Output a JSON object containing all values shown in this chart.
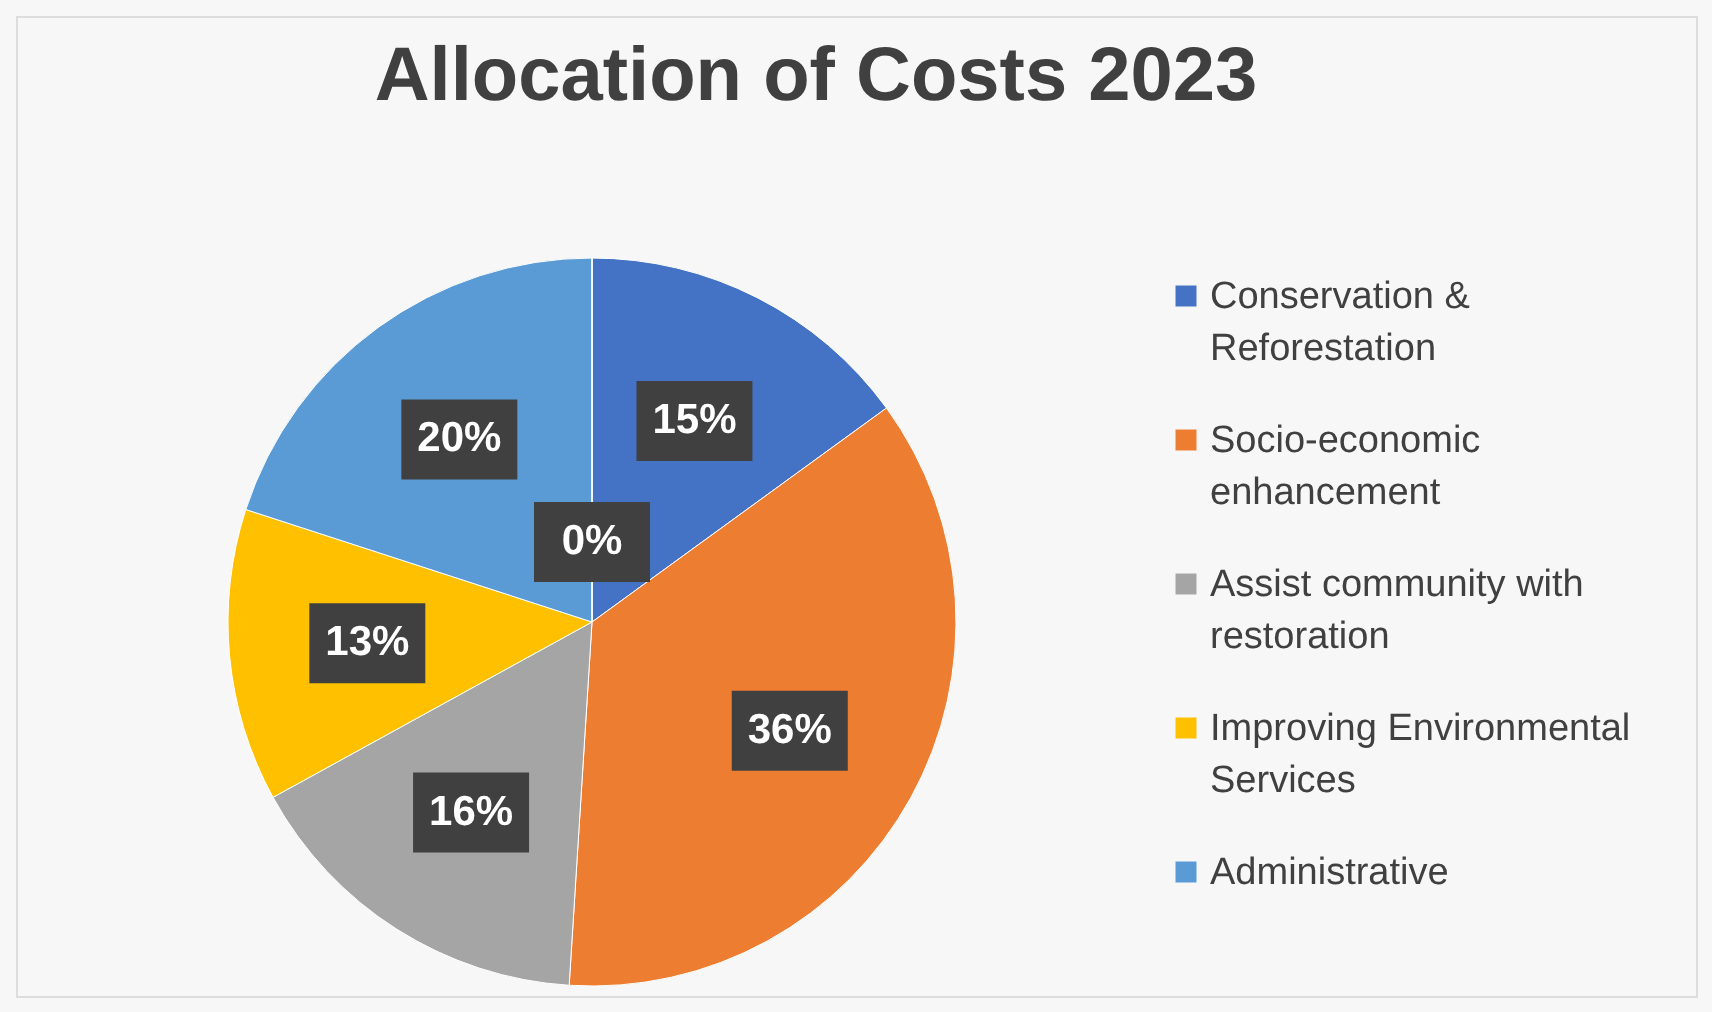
{
  "chart_data": {
    "type": "pie",
    "title": "Allocation of Costs 2023",
    "categories": [
      "Conservation & Reforestation",
      "Socio-economic enhancement",
      "Assist community with restoration",
      "Improving Environmental Services",
      "Administrative",
      null
    ],
    "values": [
      15,
      36,
      16,
      13,
      20,
      0
    ],
    "colors": [
      "#4472c4",
      "#ed7d31",
      "#a5a5a5",
      "#ffc000",
      "#5b9bd5",
      "#70ad47"
    ],
    "value_labels": [
      "15%",
      "36%",
      "16%",
      "13%",
      "20%",
      "0%"
    ],
    "legend": "right"
  }
}
